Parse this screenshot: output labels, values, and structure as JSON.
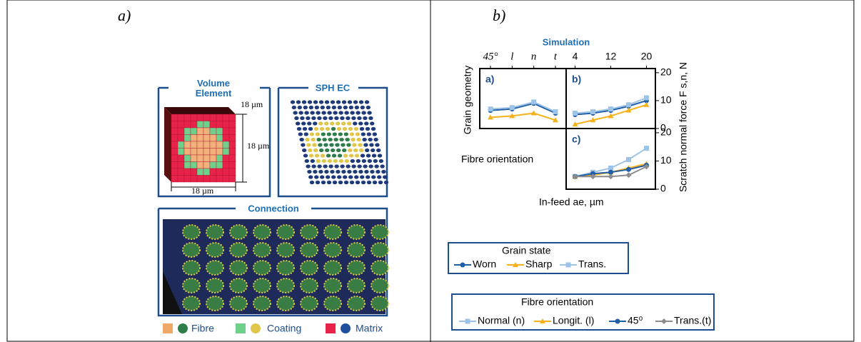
{
  "figure": {
    "label_a": "a)",
    "label_b": "b)",
    "volume_element": "Volume Element",
    "sph": "SPH EC",
    "connection": "Connection",
    "dim_labels": [
      "18 µm",
      "18 µm",
      "18 µm"
    ],
    "legend": [
      "Fibre",
      "Coating",
      "Matrix"
    ]
  },
  "chart_data": [
    {
      "type": "line",
      "label": "a)",
      "title": "Simulation",
      "ylabel": "Grain geometry",
      "legend_title": "Grain state",
      "categories": [
        "45°",
        "l",
        "n",
        "t"
      ],
      "ylim": [
        0,
        21.5
      ],
      "series": [
        {
          "name": "Worn",
          "color": "#1f5fa8",
          "marker": "circle",
          "values": [
            6.5,
            7,
            9,
            5.5
          ]
        },
        {
          "name": "Sharp",
          "color": "#f5b21b",
          "marker": "triangle",
          "values": [
            4,
            4.5,
            5.5,
            3
          ]
        },
        {
          "name": "Trans.",
          "color": "#9dc3e6",
          "marker": "square",
          "values": [
            7,
            7.5,
            9.5,
            6
          ]
        }
      ]
    },
    {
      "type": "line",
      "label": "b)",
      "y2label": "Scratch normal force F s,n, N",
      "x": [
        4,
        8,
        12,
        16,
        20
      ],
      "xlim": [
        2,
        22
      ],
      "xticks": [
        4,
        12,
        20
      ],
      "ylim": [
        0,
        21.5
      ],
      "yticks": [
        0,
        10,
        20
      ],
      "series": [
        {
          "color": "#1f5fa8",
          "marker": "circle",
          "values": [
            5,
            5.5,
            6.5,
            8,
            10
          ]
        },
        {
          "color": "#f5b21b",
          "marker": "triangle",
          "values": [
            1.5,
            3,
            4.5,
            6.5,
            8.5
          ]
        },
        {
          "color": "#9dc3e6",
          "marker": "square",
          "values": [
            5.5,
            6,
            7,
            8.5,
            11
          ]
        }
      ]
    },
    {
      "type": "line",
      "label": "c)",
      "ylabel": "Fibre orientation",
      "xlabel": "In-feed ae, µm",
      "legend_title": "Fibre orientation",
      "x": [
        4,
        8,
        12,
        16,
        20
      ],
      "xlim": [
        2,
        22
      ],
      "ylim": [
        0,
        21.5
      ],
      "yticks": [
        0,
        10,
        20
      ],
      "series": [
        {
          "name": "Normal (n)",
          "color": "#9dc3e6",
          "marker": "square",
          "values": [
            4.5,
            6,
            7.5,
            10.5,
            14.5
          ]
        },
        {
          "name": "Longit. (l)",
          "color": "#f5b21b",
          "marker": "triangle",
          "values": [
            4.5,
            5,
            6,
            7.5,
            9
          ]
        },
        {
          "name": "45⁰",
          "color": "#1f5fa8",
          "marker": "circle",
          "values": [
            4.5,
            5.5,
            6,
            7,
            8.5
          ]
        },
        {
          "name": "Trans.(t)",
          "color": "#8c8c8c",
          "marker": "diamond",
          "values": [
            4.5,
            4.5,
            4.5,
            5,
            8
          ]
        }
      ]
    }
  ]
}
